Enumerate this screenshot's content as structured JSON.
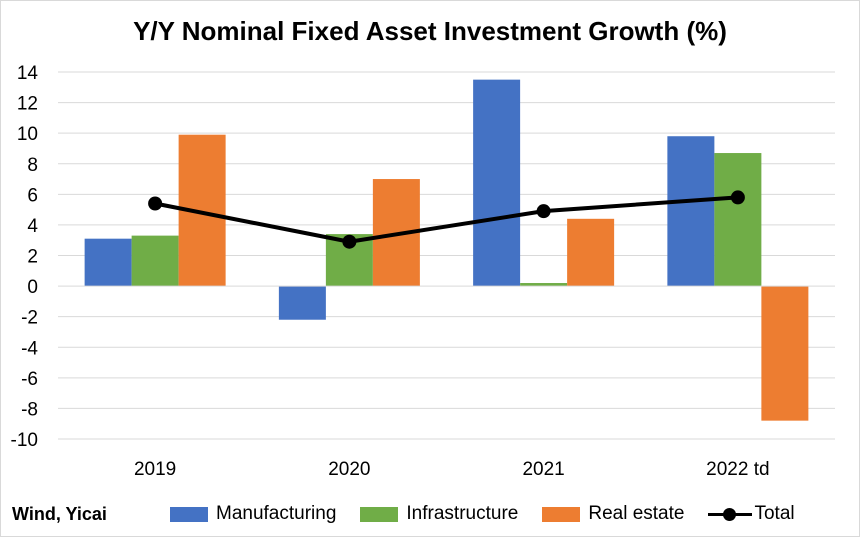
{
  "chart_data": {
    "type": "bar",
    "title": "Y/Y Nominal Fixed Asset Investment Growth (%)",
    "categories": [
      "2019",
      "2020",
      "2021",
      "2022 td"
    ],
    "series": [
      {
        "name": "Manufacturing",
        "type": "bar",
        "color": "#4472C4",
        "values": [
          3.1,
          -2.2,
          13.5,
          9.8
        ]
      },
      {
        "name": "Infrastructure",
        "type": "bar",
        "color": "#70AD47",
        "values": [
          3.3,
          3.4,
          0.2,
          8.7
        ]
      },
      {
        "name": "Real estate",
        "type": "bar",
        "color": "#ED7D31",
        "values": [
          9.9,
          7.0,
          4.4,
          -8.8
        ]
      },
      {
        "name": "Total",
        "type": "line",
        "color": "#000000",
        "values": [
          5.4,
          2.9,
          4.9,
          5.8
        ]
      }
    ],
    "ylim": [
      -10,
      14
    ],
    "yticks": [
      14,
      12,
      10,
      8,
      6,
      4,
      2,
      0,
      -2,
      -4,
      -6,
      -8,
      -10
    ],
    "grid": true,
    "legend_position": "bottom"
  },
  "source_note": "Wind, Yicai"
}
